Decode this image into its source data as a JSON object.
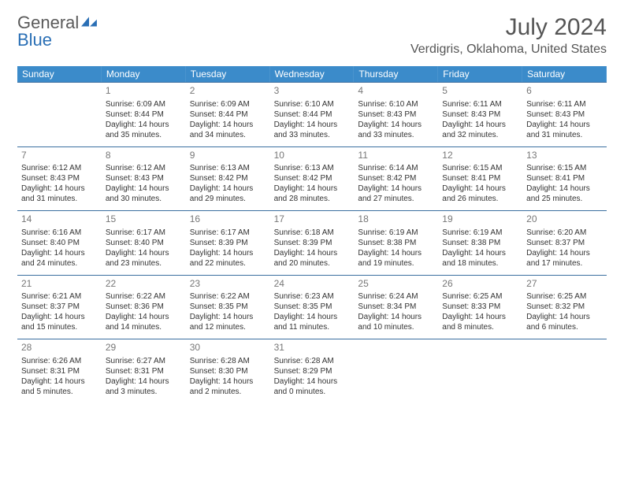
{
  "brand": {
    "part1": "General",
    "part2": "Blue"
  },
  "title": "July 2024",
  "location": "Verdigris, Oklahoma, United States",
  "colors": {
    "header_bg": "#3b8bca",
    "header_text": "#ffffff",
    "week_border": "#3b6fa0",
    "brand_gray": "#5a5a5a",
    "brand_blue": "#2a6fb5",
    "text": "#333333",
    "daynum": "#777777"
  },
  "dayNames": [
    "Sunday",
    "Monday",
    "Tuesday",
    "Wednesday",
    "Thursday",
    "Friday",
    "Saturday"
  ],
  "weeks": [
    [
      null,
      {
        "n": "1",
        "sr": "6:09 AM",
        "ss": "8:44 PM",
        "dl": "14 hours and 35 minutes."
      },
      {
        "n": "2",
        "sr": "6:09 AM",
        "ss": "8:44 PM",
        "dl": "14 hours and 34 minutes."
      },
      {
        "n": "3",
        "sr": "6:10 AM",
        "ss": "8:44 PM",
        "dl": "14 hours and 33 minutes."
      },
      {
        "n": "4",
        "sr": "6:10 AM",
        "ss": "8:43 PM",
        "dl": "14 hours and 33 minutes."
      },
      {
        "n": "5",
        "sr": "6:11 AM",
        "ss": "8:43 PM",
        "dl": "14 hours and 32 minutes."
      },
      {
        "n": "6",
        "sr": "6:11 AM",
        "ss": "8:43 PM",
        "dl": "14 hours and 31 minutes."
      }
    ],
    [
      {
        "n": "7",
        "sr": "6:12 AM",
        "ss": "8:43 PM",
        "dl": "14 hours and 31 minutes."
      },
      {
        "n": "8",
        "sr": "6:12 AM",
        "ss": "8:43 PM",
        "dl": "14 hours and 30 minutes."
      },
      {
        "n": "9",
        "sr": "6:13 AM",
        "ss": "8:42 PM",
        "dl": "14 hours and 29 minutes."
      },
      {
        "n": "10",
        "sr": "6:13 AM",
        "ss": "8:42 PM",
        "dl": "14 hours and 28 minutes."
      },
      {
        "n": "11",
        "sr": "6:14 AM",
        "ss": "8:42 PM",
        "dl": "14 hours and 27 minutes."
      },
      {
        "n": "12",
        "sr": "6:15 AM",
        "ss": "8:41 PM",
        "dl": "14 hours and 26 minutes."
      },
      {
        "n": "13",
        "sr": "6:15 AM",
        "ss": "8:41 PM",
        "dl": "14 hours and 25 minutes."
      }
    ],
    [
      {
        "n": "14",
        "sr": "6:16 AM",
        "ss": "8:40 PM",
        "dl": "14 hours and 24 minutes."
      },
      {
        "n": "15",
        "sr": "6:17 AM",
        "ss": "8:40 PM",
        "dl": "14 hours and 23 minutes."
      },
      {
        "n": "16",
        "sr": "6:17 AM",
        "ss": "8:39 PM",
        "dl": "14 hours and 22 minutes."
      },
      {
        "n": "17",
        "sr": "6:18 AM",
        "ss": "8:39 PM",
        "dl": "14 hours and 20 minutes."
      },
      {
        "n": "18",
        "sr": "6:19 AM",
        "ss": "8:38 PM",
        "dl": "14 hours and 19 minutes."
      },
      {
        "n": "19",
        "sr": "6:19 AM",
        "ss": "8:38 PM",
        "dl": "14 hours and 18 minutes."
      },
      {
        "n": "20",
        "sr": "6:20 AM",
        "ss": "8:37 PM",
        "dl": "14 hours and 17 minutes."
      }
    ],
    [
      {
        "n": "21",
        "sr": "6:21 AM",
        "ss": "8:37 PM",
        "dl": "14 hours and 15 minutes."
      },
      {
        "n": "22",
        "sr": "6:22 AM",
        "ss": "8:36 PM",
        "dl": "14 hours and 14 minutes."
      },
      {
        "n": "23",
        "sr": "6:22 AM",
        "ss": "8:35 PM",
        "dl": "14 hours and 12 minutes."
      },
      {
        "n": "24",
        "sr": "6:23 AM",
        "ss": "8:35 PM",
        "dl": "14 hours and 11 minutes."
      },
      {
        "n": "25",
        "sr": "6:24 AM",
        "ss": "8:34 PM",
        "dl": "14 hours and 10 minutes."
      },
      {
        "n": "26",
        "sr": "6:25 AM",
        "ss": "8:33 PM",
        "dl": "14 hours and 8 minutes."
      },
      {
        "n": "27",
        "sr": "6:25 AM",
        "ss": "8:32 PM",
        "dl": "14 hours and 6 minutes."
      }
    ],
    [
      {
        "n": "28",
        "sr": "6:26 AM",
        "ss": "8:31 PM",
        "dl": "14 hours and 5 minutes."
      },
      {
        "n": "29",
        "sr": "6:27 AM",
        "ss": "8:31 PM",
        "dl": "14 hours and 3 minutes."
      },
      {
        "n": "30",
        "sr": "6:28 AM",
        "ss": "8:30 PM",
        "dl": "14 hours and 2 minutes."
      },
      {
        "n": "31",
        "sr": "6:28 AM",
        "ss": "8:29 PM",
        "dl": "14 hours and 0 minutes."
      },
      null,
      null,
      null
    ]
  ],
  "labels": {
    "sunrise": "Sunrise:",
    "sunset": "Sunset:",
    "daylight": "Daylight:"
  }
}
